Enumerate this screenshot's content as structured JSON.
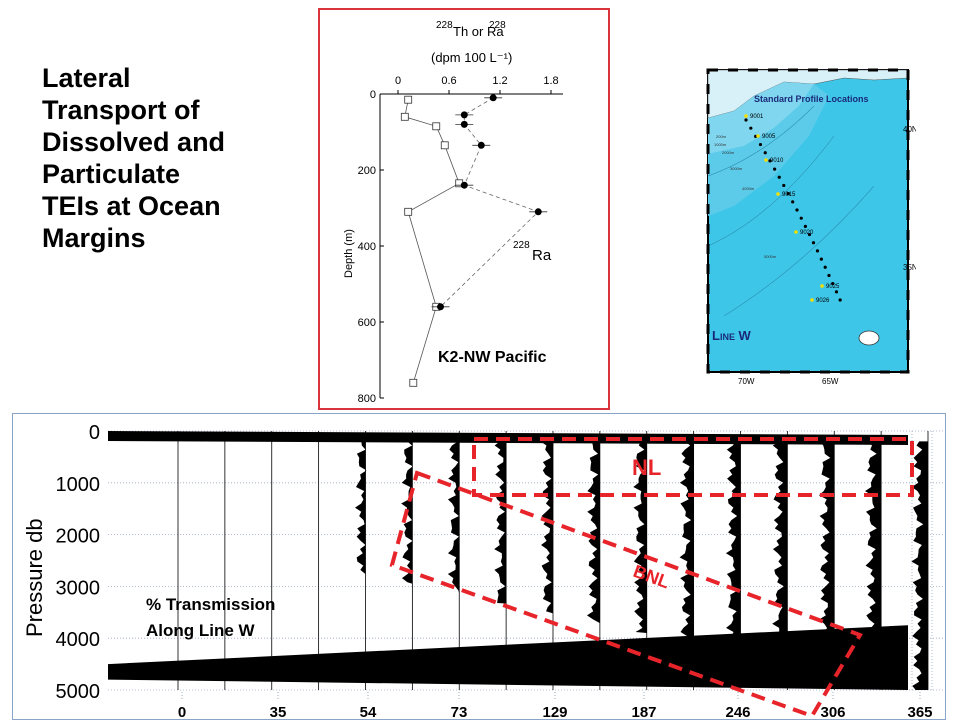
{
  "slide": {
    "title_lines": [
      "Lateral",
      "Transport of",
      "Dissolved and",
      "Particulate",
      "TEIs at Ocean",
      "Margins"
    ]
  },
  "profile": {
    "title_line1": "Th or Ra",
    "title_iso_a": "228",
    "title_iso_b": "228",
    "title_line2": "(dpm 100 L⁻¹)",
    "x_ticks": [
      "0",
      "0.6",
      "1.2",
      "1.8"
    ],
    "y_ticks": [
      "0",
      "200",
      "400",
      "600",
      "800"
    ],
    "ylabel": "Depth (m)",
    "series_label_iso": "228",
    "series_label": "Ra",
    "caption": "K2-NW Pacific",
    "color_border": "#d9333c",
    "ra_points": [
      [
        1.12,
        10
      ],
      [
        0.78,
        80
      ],
      [
        0.78,
        55
      ],
      [
        0.98,
        135
      ],
      [
        0.78,
        240
      ],
      [
        1.65,
        310
      ],
      [
        0.5,
        560
      ]
    ],
    "th_points": [
      [
        0.12,
        15
      ],
      [
        0.08,
        60
      ],
      [
        0.45,
        85
      ],
      [
        0.55,
        135
      ],
      [
        0.72,
        235
      ],
      [
        0.12,
        310
      ],
      [
        0.45,
        560
      ],
      [
        0.18,
        760
      ]
    ]
  },
  "map": {
    "title": "Standard Profile Locations",
    "stations": [
      "9001",
      "9005",
      "9010",
      "9015",
      "9020",
      "9025",
      "9026"
    ],
    "lat_labels": [
      "40N",
      "35N"
    ],
    "lon_labels": [
      "70W",
      "65W"
    ],
    "line_label": "Line W",
    "depth_labels": [
      "200m",
      "1000m",
      "2000m",
      "3000m",
      "4000m",
      "5000m"
    ],
    "color_water": "#3ec6e8",
    "color_land": "#d8f0f8"
  },
  "section": {
    "ylabel": "Pressure db",
    "y_ticks": [
      "0",
      "1000",
      "2000",
      "3000",
      "4000",
      "5000"
    ],
    "x_ticks": [
      "0",
      "35",
      "54",
      "73",
      "129",
      "187",
      "246",
      "306",
      "365"
    ],
    "annotation_nl": "NL",
    "annotation_bnl": "BNL",
    "legend_line1": "% Transmission",
    "legend_line2": "Along Line W",
    "color_dash": "#e8242b"
  }
}
